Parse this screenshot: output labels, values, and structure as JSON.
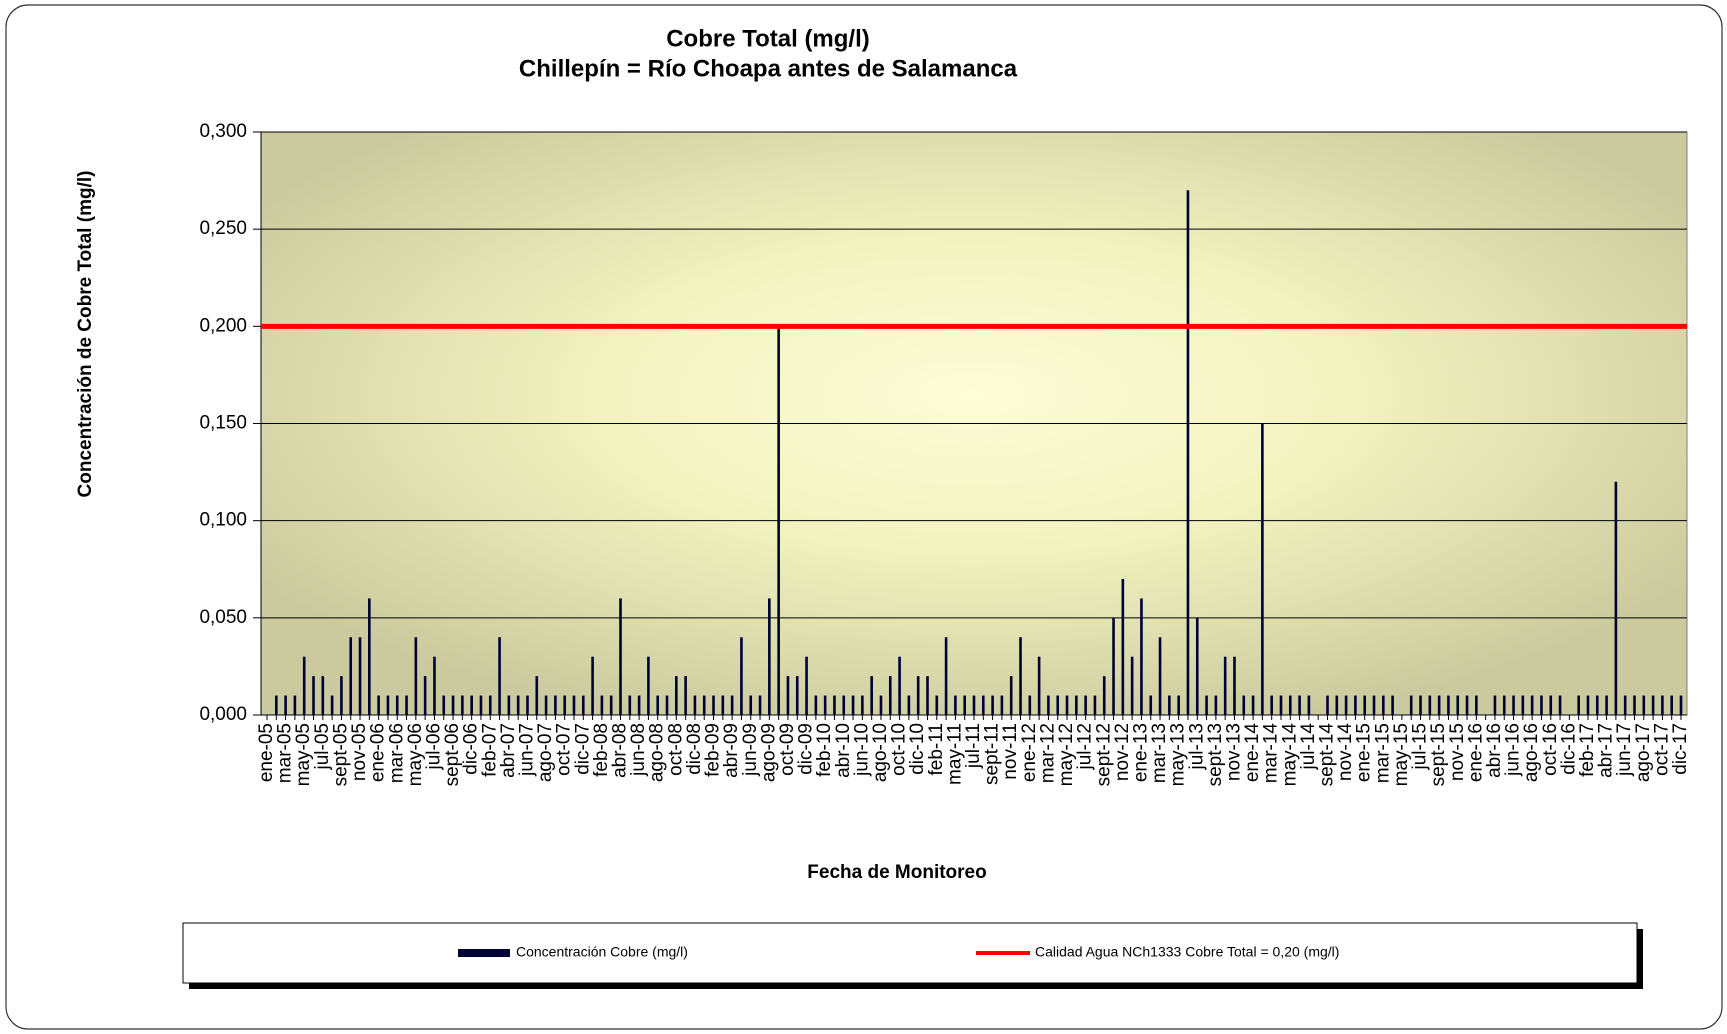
{
  "chart_data": {
    "type": "bar",
    "title": "Cobre Total (mg/l)",
    "subtitle": "Chillepín = Río Choapa antes de Salamanca",
    "y_label": "Concentración de Cobre Total (mg/l)",
    "x_label": "Fecha de Monitoreo",
    "categories": [
      "ene-05",
      null,
      "mar-05",
      null,
      "may-05",
      null,
      "jul-05",
      null,
      "sept-05",
      null,
      "nov-05",
      null,
      "ene-06",
      null,
      "mar-06",
      null,
      "may-06",
      null,
      "jul-06",
      null,
      "sept-06",
      null,
      "dic-06",
      null,
      "feb-07",
      null,
      "abr-07",
      null,
      "jun-07",
      null,
      "ago-07",
      null,
      "oct-07",
      null,
      "dic-07",
      null,
      "feb-08",
      null,
      "abr-08",
      null,
      "jun-08",
      null,
      "ago-08",
      null,
      "oct-08",
      null,
      "dic-08",
      null,
      "feb-09",
      null,
      "abr-09",
      null,
      "jun-09",
      null,
      "ago-09",
      null,
      "oct-09",
      null,
      "dic-09",
      null,
      "feb-10",
      null,
      "abr-10",
      null,
      "jun-10",
      null,
      "ago-10",
      null,
      "oct-10",
      null,
      "dic-10",
      null,
      "feb-11",
      null,
      "may-11",
      null,
      "jul-11",
      null,
      "sept-11",
      null,
      "nov-11",
      null,
      "ene-12",
      null,
      "mar-12",
      null,
      "may-12",
      null,
      "jul-12",
      null,
      "sept-12",
      null,
      "nov-12",
      null,
      "ene-13",
      null,
      "mar-13",
      null,
      "may-13",
      null,
      "jul-13",
      null,
      "sept-13",
      null,
      "nov-13",
      null,
      "ene-14",
      null,
      "mar-14",
      null,
      "may-14",
      null,
      "jul-14",
      null,
      "sept-14",
      null,
      "nov-14",
      null,
      "ene-15",
      null,
      "mar-15",
      null,
      "may-15",
      null,
      "jul-15",
      null,
      "sept-15",
      null,
      "nov-15",
      null,
      "ene-16",
      null,
      "abr-16",
      null,
      "jun-16",
      null,
      "ago-16",
      null,
      "oct-16",
      null,
      "dic-16",
      null,
      "feb-17",
      null,
      "abr-17",
      null,
      "jun-17",
      null,
      "ago-17",
      null,
      "oct-17",
      null,
      "dic-17"
    ],
    "series": [
      {
        "name": "Concentración Cobre (mg/l)",
        "color": "#000033",
        "values": [
          null,
          0.01,
          0.01,
          0.01,
          0.03,
          0.02,
          0.02,
          0.01,
          0.02,
          0.04,
          0.04,
          0.06,
          0.01,
          0.01,
          0.01,
          0.01,
          0.04,
          0.02,
          0.03,
          0.01,
          0.01,
          0.01,
          0.01,
          0.01,
          0.01,
          0.04,
          0.01,
          0.01,
          0.01,
          0.02,
          0.01,
          0.01,
          0.01,
          0.01,
          0.01,
          0.03,
          0.01,
          0.01,
          0.06,
          0.01,
          0.01,
          0.03,
          0.01,
          0.01,
          0.02,
          0.02,
          0.01,
          0.01,
          0.01,
          0.01,
          0.01,
          0.04,
          0.01,
          0.01,
          0.06,
          0.2,
          0.02,
          0.02,
          0.03,
          0.01,
          0.01,
          0.01,
          0.01,
          0.01,
          0.01,
          0.02,
          0.01,
          0.02,
          0.03,
          0.01,
          0.02,
          0.02,
          0.01,
          0.04,
          0.01,
          0.01,
          0.01,
          0.01,
          0.01,
          0.01,
          0.02,
          0.04,
          0.01,
          0.03,
          0.01,
          0.01,
          0.01,
          0.01,
          0.01,
          0.01,
          0.02,
          0.05,
          0.07,
          0.03,
          0.06,
          0.01,
          0.04,
          0.01,
          0.01,
          0.27,
          0.05,
          0.01,
          0.01,
          0.03,
          0.03,
          0.01,
          0.01,
          0.15,
          0.01,
          0.01,
          0.01,
          0.01,
          0.01,
          null,
          0.01,
          0.01,
          0.01,
          0.01,
          0.01,
          0.01,
          0.01,
          0.01,
          null,
          0.01,
          0.01,
          0.01,
          0.01,
          0.01,
          0.01,
          0.01,
          0.01,
          null,
          0.01,
          0.01,
          0.01,
          0.01,
          0.01,
          0.01,
          0.01,
          0.01,
          null,
          0.01,
          0.01,
          0.01,
          0.01,
          0.12,
          0.01,
          0.01,
          0.01,
          0.01,
          0.01,
          0.01,
          0.01
        ]
      }
    ],
    "reference_line": {
      "name": "Calidad Agua NCh1333 Cobre Total = 0,20 (mg/l)",
      "value": 0.2,
      "color": "#ff0000"
    },
    "ylim": [
      0,
      0.3
    ],
    "yticks": [
      {
        "value": 0,
        "label": "0,000"
      },
      {
        "value": 0.05,
        "label": "0,050"
      },
      {
        "value": 0.1,
        "label": "0,100"
      },
      {
        "value": 0.15,
        "label": "0,150"
      },
      {
        "value": 0.2,
        "label": "0,200"
      },
      {
        "value": 0.25,
        "label": "0,250"
      },
      {
        "value": 0.3,
        "label": "0,300"
      }
    ],
    "grid": true,
    "legend": "bottom"
  }
}
